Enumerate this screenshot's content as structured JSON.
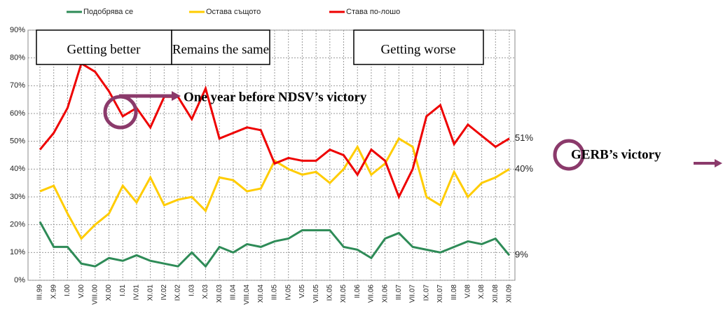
{
  "chart_data": {
    "type": "line",
    "categories": [
      "III.99",
      "X.99",
      "I.00",
      "V.00",
      "VIII.00",
      "XI.00",
      "I.01",
      "IV.01",
      "XI.01",
      "IV.02",
      "IX.02",
      "I.03",
      "X.03",
      "XII.03",
      "III.04",
      "VIII.04",
      "XII.04",
      "III.05",
      "IV.05",
      "V.05",
      "VII.05",
      "IX.05",
      "XII.05",
      "II.06",
      "VII.06",
      "XII.06",
      "III.07",
      "VII.07",
      "IX.07",
      "XII.07",
      "III.08",
      "V.08",
      "X.08",
      "XII.08",
      "XII.09"
    ],
    "series": [
      {
        "name": "Подобрява се",
        "color": "#2e8b57",
        "values": [
          21,
          12,
          12,
          6,
          5,
          8,
          7,
          9,
          7,
          6,
          5,
          10,
          5,
          12,
          10,
          13,
          12,
          14,
          15,
          18,
          18,
          18,
          12,
          11,
          8,
          15,
          17,
          12,
          11,
          10,
          12,
          14,
          13,
          15,
          9
        ],
        "value_labels": [
          null,
          null,
          null,
          null,
          null,
          null,
          null,
          null,
          null,
          null,
          null,
          null,
          null,
          null,
          null,
          null,
          null,
          null,
          null,
          null,
          null,
          null,
          null,
          null,
          null,
          null,
          null,
          null,
          null,
          null,
          null,
          null,
          null,
          null,
          "9%"
        ]
      },
      {
        "name": "Остава същото",
        "color": "#ffcc00",
        "values": [
          32,
          34,
          24,
          15,
          20,
          24,
          34,
          28,
          37,
          27,
          29,
          30,
          25,
          37,
          36,
          32,
          33,
          43,
          40,
          38,
          39,
          35,
          40,
          48,
          38,
          42,
          51,
          48,
          30,
          27,
          39,
          30,
          35,
          37,
          40
        ],
        "value_labels": [
          null,
          null,
          null,
          null,
          null,
          null,
          null,
          null,
          null,
          null,
          null,
          null,
          null,
          null,
          null,
          null,
          null,
          null,
          null,
          null,
          null,
          null,
          null,
          null,
          null,
          null,
          null,
          null,
          null,
          null,
          null,
          null,
          null,
          null,
          "40%"
        ]
      },
      {
        "name": "Става по-лошо",
        "color": "#ee0000",
        "values": [
          47,
          53,
          62,
          78,
          75,
          68,
          59,
          62,
          55,
          66,
          66,
          58,
          69,
          51,
          53,
          55,
          54,
          42,
          44,
          43,
          43,
          47,
          45,
          38,
          47,
          43,
          30,
          40,
          59,
          63,
          49,
          56,
          52,
          48,
          51
        ],
        "value_labels": [
          null,
          null,
          null,
          null,
          null,
          null,
          null,
          null,
          null,
          null,
          null,
          null,
          null,
          null,
          null,
          null,
          null,
          null,
          null,
          null,
          null,
          null,
          null,
          null,
          null,
          null,
          null,
          null,
          null,
          null,
          null,
          null,
          null,
          null,
          "51%"
        ]
      }
    ],
    "ylim": [
      0,
      90
    ],
    "yticks": [
      {
        "value": 0,
        "label": "0%"
      },
      {
        "value": 10,
        "label": "10%"
      },
      {
        "value": 20,
        "label": "20%"
      },
      {
        "value": 30,
        "label": "30%"
      },
      {
        "value": 40,
        "label": "40%"
      },
      {
        "value": 50,
        "label": "50%"
      },
      {
        "value": 60,
        "label": "60%"
      },
      {
        "value": 70,
        "label": "70%"
      },
      {
        "value": 80,
        "label": "80%"
      },
      {
        "value": 90,
        "label": "90%"
      }
    ],
    "grid": true,
    "legend": "top",
    "annotations": [
      "Getting better",
      "Remains the same",
      "Getting worse",
      "One year before NDSV’s victory",
      "GERB’s victory"
    ]
  }
}
